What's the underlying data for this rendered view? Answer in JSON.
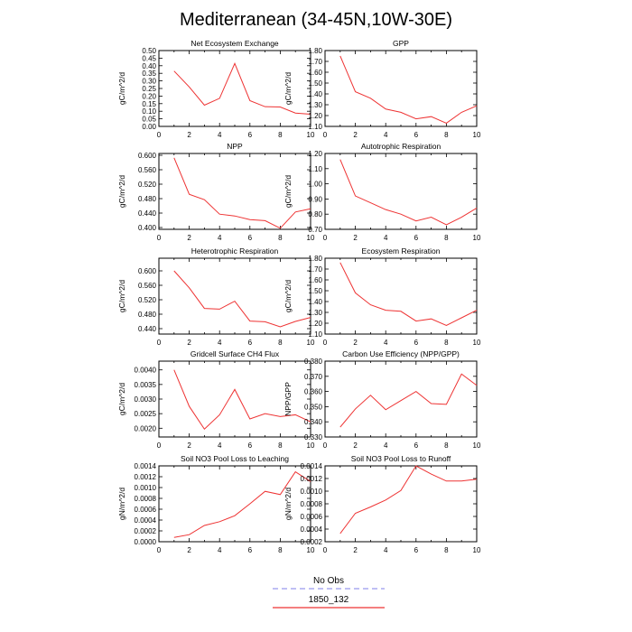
{
  "title": "Mediterranean (34-45N,10W-30E)",
  "legend": {
    "placement": "bottom-center",
    "entries": [
      {
        "label": "No Obs",
        "color": "#9999ee",
        "dash": true
      },
      {
        "label": "1850_132",
        "color": "#ee3333",
        "dash": false
      }
    ]
  },
  "chart_data": [
    {
      "type": "line",
      "title": "Net Ecosystem Exchange",
      "ylabel": "gC/m^2/d",
      "xlim": [
        0,
        10
      ],
      "xticks": [
        0,
        2,
        4,
        6,
        8,
        10
      ],
      "ylim": [
        0,
        0.5
      ],
      "yticks": [
        "0.00",
        "0.05",
        "0.10",
        "0.15",
        "0.20",
        "0.25",
        "0.30",
        "0.35",
        "0.40",
        "0.45",
        "0.50"
      ],
      "series": [
        {
          "name": "1850_132",
          "x": [
            1,
            2,
            3,
            4,
            5,
            6,
            7,
            8,
            9,
            10
          ],
          "values": [
            0.365,
            0.26,
            0.14,
            0.185,
            0.415,
            0.17,
            0.13,
            0.128,
            0.088,
            0.08
          ]
        }
      ]
    },
    {
      "type": "line",
      "title": "GPP",
      "ylabel": "gC/m^2/d",
      "xlim": [
        0,
        10
      ],
      "xticks": [
        0,
        2,
        4,
        6,
        8,
        10
      ],
      "ylim": [
        1.1,
        1.8
      ],
      "yticks": [
        "1.10",
        "1.20",
        "1.30",
        "1.40",
        "1.50",
        "1.60",
        "1.70",
        "1.80"
      ],
      "series": [
        {
          "name": "1850_132",
          "x": [
            1,
            2,
            3,
            4,
            5,
            6,
            7,
            8,
            9,
            10
          ],
          "values": [
            1.75,
            1.42,
            1.36,
            1.26,
            1.23,
            1.17,
            1.19,
            1.13,
            1.23,
            1.29
          ]
        }
      ]
    },
    {
      "type": "line",
      "title": "NPP",
      "ylabel": "gC/m^2/d",
      "xlim": [
        0,
        10
      ],
      "xticks": [
        0,
        2,
        4,
        6,
        8,
        10
      ],
      "ylim": [
        0.395,
        0.605
      ],
      "yticks": [
        "0.400",
        "0.440",
        "0.480",
        "0.520",
        "0.560",
        "0.600"
      ],
      "series": [
        {
          "name": "1850_132",
          "x": [
            1,
            2,
            3,
            4,
            5,
            6,
            7,
            8,
            9,
            10
          ],
          "values": [
            0.593,
            0.492,
            0.477,
            0.437,
            0.432,
            0.422,
            0.419,
            0.398,
            0.443,
            0.452
          ]
        }
      ]
    },
    {
      "type": "line",
      "title": "Autotrophic Respiration",
      "ylabel": "gC/m^2/d",
      "xlim": [
        0,
        10
      ],
      "xticks": [
        0,
        2,
        4,
        6,
        8,
        10
      ],
      "ylim": [
        0.7,
        1.2
      ],
      "yticks": [
        "0.70",
        "0.80",
        "0.90",
        "1.00",
        "1.10",
        "1.20"
      ],
      "series": [
        {
          "name": "1850_132",
          "x": [
            1,
            2,
            3,
            4,
            5,
            6,
            7,
            8,
            9,
            10
          ],
          "values": [
            1.16,
            0.92,
            0.875,
            0.83,
            0.8,
            0.755,
            0.78,
            0.73,
            0.78,
            0.84
          ]
        }
      ]
    },
    {
      "type": "line",
      "title": "Heterotrophic Respiration",
      "ylabel": "gC/m^2/d",
      "xlim": [
        0,
        10
      ],
      "xticks": [
        0,
        2,
        4,
        6,
        8,
        10
      ],
      "ylim": [
        0.425,
        0.635
      ],
      "yticks": [
        "0.440",
        "0.480",
        "0.520",
        "0.560",
        "0.600"
      ],
      "series": [
        {
          "name": "1850_132",
          "x": [
            1,
            2,
            3,
            4,
            5,
            6,
            7,
            8,
            9,
            10
          ],
          "values": [
            0.6,
            0.553,
            0.496,
            0.494,
            0.516,
            0.461,
            0.459,
            0.445,
            0.46,
            0.471
          ]
        }
      ]
    },
    {
      "type": "line",
      "title": "Ecosystem Respiration",
      "ylabel": "gC/m^2/d",
      "xlim": [
        0,
        10
      ],
      "xticks": [
        0,
        2,
        4,
        6,
        8,
        10
      ],
      "ylim": [
        1.1,
        1.8
      ],
      "yticks": [
        "1.10",
        "1.20",
        "1.30",
        "1.40",
        "1.50",
        "1.60",
        "1.70",
        "1.80"
      ],
      "series": [
        {
          "name": "1850_132",
          "x": [
            1,
            2,
            3,
            4,
            5,
            6,
            7,
            8,
            9,
            10
          ],
          "values": [
            1.76,
            1.48,
            1.37,
            1.32,
            1.31,
            1.22,
            1.24,
            1.18,
            1.25,
            1.32
          ]
        }
      ]
    },
    {
      "type": "line",
      "title": "Gridcell Surface CH4 Flux",
      "ylabel": "gC/m^2/d",
      "xlim": [
        0,
        10
      ],
      "xticks": [
        0,
        2,
        4,
        6,
        8,
        10
      ],
      "ylim": [
        0.0017,
        0.0043
      ],
      "yticks": [
        "0.0020",
        "0.0025",
        "0.0030",
        "0.0035",
        "0.0040"
      ],
      "series": [
        {
          "name": "1850_132",
          "x": [
            1,
            2,
            3,
            4,
            5,
            6,
            7,
            8,
            9,
            10
          ],
          "values": [
            0.004,
            0.00275,
            0.00197,
            0.00246,
            0.00333,
            0.00232,
            0.0025,
            0.0024,
            0.00246,
            0.00222
          ]
        }
      ]
    },
    {
      "type": "line",
      "title": "Carbon Use Efficiency (NPP/GPP)",
      "ylabel": "NPP/GPP",
      "xlim": [
        0,
        10
      ],
      "xticks": [
        0,
        2,
        4,
        6,
        8,
        10
      ],
      "ylim": [
        0.33,
        0.38
      ],
      "yticks": [
        "0.330",
        "0.340",
        "0.350",
        "0.360",
        "0.370",
        "0.380"
      ],
      "series": [
        {
          "name": "1850_132",
          "x": [
            1,
            2,
            3,
            4,
            5,
            6,
            7,
            8,
            9,
            10
          ],
          "values": [
            0.3365,
            0.3485,
            0.3575,
            0.348,
            0.354,
            0.36,
            0.352,
            0.3515,
            0.3715,
            0.364
          ]
        }
      ]
    },
    {
      "type": "line",
      "title": "Soil NO3 Pool Loss to Leaching",
      "ylabel": "gN/m^2/d",
      "xlim": [
        0,
        10
      ],
      "xticks": [
        0,
        2,
        4,
        6,
        8,
        10
      ],
      "ylim": [
        0,
        0.0014
      ],
      "yticks": [
        "0.0000",
        "0.0002",
        "0.0004",
        "0.0006",
        "0.0008",
        "0.0010",
        "0.0012",
        "0.0014"
      ],
      "series": [
        {
          "name": "1850_132",
          "x": [
            1,
            2,
            3,
            4,
            5,
            6,
            7,
            8,
            9,
            10
          ],
          "values": [
            8e-05,
            0.00013,
            0.0003,
            0.00037,
            0.00048,
            0.0007,
            0.00093,
            0.00087,
            0.00129,
            0.00111
          ]
        }
      ]
    },
    {
      "type": "line",
      "title": "Soil NO3 Pool Loss to Runoff",
      "ylabel": "gN/m^2/d",
      "xlim": [
        0,
        10
      ],
      "xticks": [
        0,
        2,
        4,
        6,
        8,
        10
      ],
      "ylim": [
        0.0002,
        0.0014
      ],
      "yticks": [
        "0.0002",
        "0.0004",
        "0.0006",
        "0.0008",
        "0.0010",
        "0.0012",
        "0.0014"
      ],
      "series": [
        {
          "name": "1850_132",
          "x": [
            1,
            2,
            3,
            4,
            5,
            6,
            7,
            8,
            9,
            10
          ],
          "values": [
            0.00033,
            0.00065,
            0.00075,
            0.00086,
            0.00101,
            0.0014,
            0.00127,
            0.00116,
            0.00116,
            0.00119
          ]
        }
      ]
    }
  ]
}
